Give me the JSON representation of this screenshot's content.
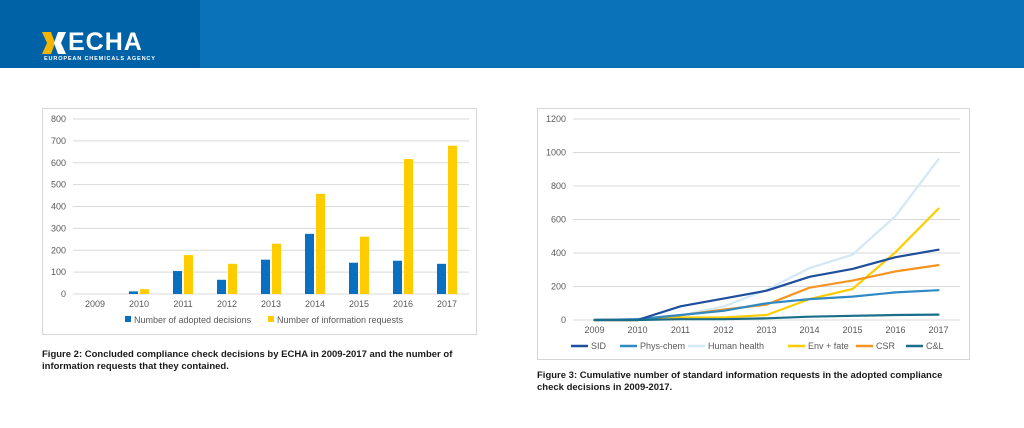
{
  "header": {
    "logo_text": "ECHA",
    "logo_subtitle": "EUROPEAN CHEMICALS AGENCY",
    "background_color": "#0a72b8",
    "logo_accent_color": "#f5b400"
  },
  "chart_data": [
    {
      "type": "bar",
      "categories": [
        "2009",
        "2010",
        "2011",
        "2012",
        "2013",
        "2014",
        "2015",
        "2016",
        "2017"
      ],
      "series": [
        {
          "name": "Number of adopted decisions",
          "color": "#0a6fc0",
          "values": [
            0,
            12,
            105,
            65,
            157,
            275,
            143,
            152,
            138
          ]
        },
        {
          "name": "Number of information requests",
          "color": "#ffcc00",
          "values": [
            0,
            22,
            178,
            138,
            230,
            458,
            262,
            617,
            678
          ]
        }
      ],
      "yticks": [
        "0",
        "100",
        "200",
        "300",
        "400",
        "500",
        "600",
        "700",
        "800"
      ],
      "ylim": [
        0,
        800
      ],
      "grid": true,
      "legend_position": "bottom",
      "caption": "Figure 2: Concluded compliance check decisions by ECHA in 2009-2017 and the number of information requests that they contained."
    },
    {
      "type": "line",
      "x": [
        "2009",
        "2010",
        "2011",
        "2012",
        "2013",
        "2014",
        "2015",
        "2016",
        "2017"
      ],
      "series": [
        {
          "name": "SID",
          "color": "#1f4e9c",
          "values": [
            0,
            0,
            82,
            128,
            175,
            258,
            305,
            375,
            420
          ]
        },
        {
          "name": "Phys-chem",
          "color": "#2f8ac4",
          "values": [
            0,
            5,
            30,
            55,
            100,
            125,
            140,
            165,
            178
          ]
        },
        {
          "name": "Human health",
          "color": "#d2e8f7",
          "values": [
            0,
            0,
            28,
            80,
            180,
            310,
            390,
            620,
            960
          ]
        },
        {
          "name": "Env + fate",
          "color": "#ffcc00",
          "values": [
            0,
            0,
            15,
            15,
            30,
            125,
            185,
            405,
            665
          ]
        },
        {
          "name": "CSR",
          "color": "#f5941e",
          "values": [
            0,
            0,
            28,
            62,
            92,
            193,
            235,
            290,
            328
          ]
        },
        {
          "name": "C&L",
          "color": "#1b6e8a",
          "values": [
            0,
            0,
            5,
            5,
            10,
            20,
            25,
            30,
            32
          ]
        }
      ],
      "yticks": [
        "0",
        "200",
        "400",
        "600",
        "800",
        "1000",
        "1200"
      ],
      "ylim": [
        0,
        1200
      ],
      "grid": true,
      "legend_position": "bottom",
      "caption": "Figure 3: Cumulative number of standard information requests in the adopted compliance check decisions in 2009-2017."
    }
  ]
}
